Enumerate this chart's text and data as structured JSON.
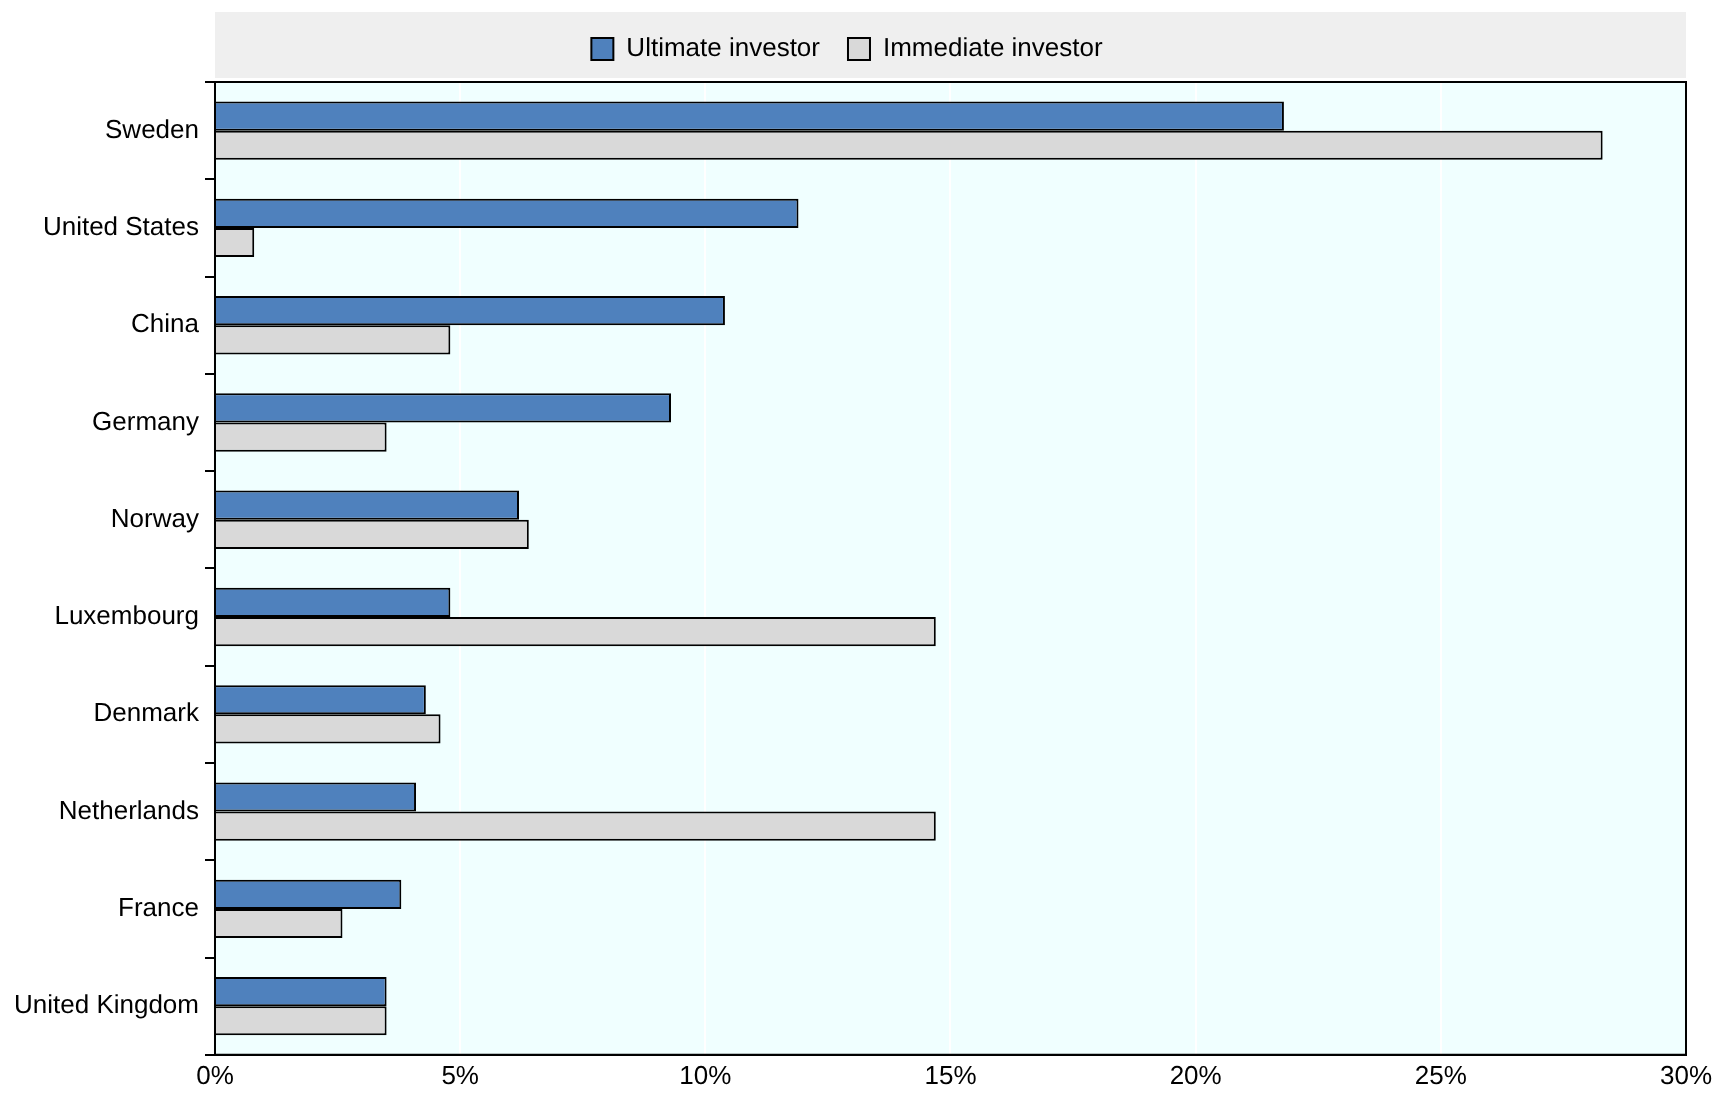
{
  "chart_data": {
    "type": "bar",
    "orientation": "horizontal",
    "categories": [
      "Sweden",
      "United States",
      "China",
      "Germany",
      "Norway",
      "Luxembourg",
      "Denmark",
      "Netherlands",
      "France",
      "United Kingdom"
    ],
    "series": [
      {
        "name": "Ultimate investor",
        "color": "#4f81bd",
        "values": [
          21.8,
          11.9,
          10.4,
          9.3,
          6.2,
          4.8,
          4.3,
          4.1,
          3.8,
          3.5
        ]
      },
      {
        "name": "Immediate investor",
        "color": "#d9d9d9",
        "values": [
          28.3,
          0.8,
          4.8,
          3.5,
          6.4,
          14.7,
          4.6,
          14.7,
          2.6,
          3.5
        ]
      }
    ],
    "xlim": [
      0,
      30
    ],
    "xticks": [
      {
        "value": 0,
        "label": "0%"
      },
      {
        "value": 5,
        "label": "5%"
      },
      {
        "value": 10,
        "label": "10%"
      },
      {
        "value": 15,
        "label": "15%"
      },
      {
        "value": 20,
        "label": "20%"
      },
      {
        "value": 25,
        "label": "25%"
      },
      {
        "value": 30,
        "label": "30%"
      }
    ],
    "grid": "x",
    "legend": "top"
  }
}
